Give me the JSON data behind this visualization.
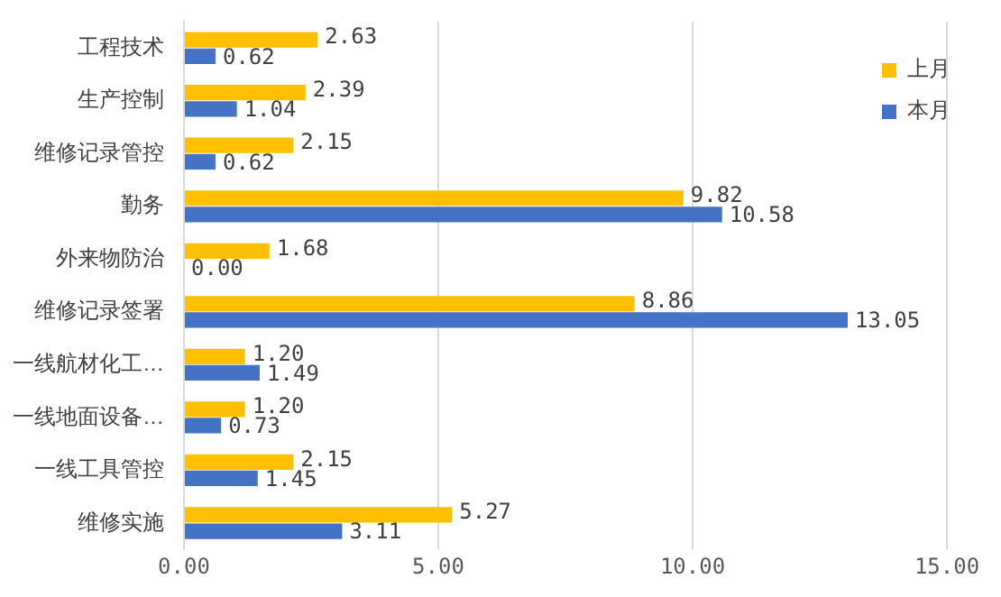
{
  "chart_data": {
    "type": "bar",
    "orientation": "horizontal",
    "categories": [
      "工程技术",
      "生产控制",
      "维修记录管控",
      "勤务",
      "外来物防治",
      "维修记录签署",
      "一线航材化工…",
      "一线地面设备…",
      "一线工具管控",
      "维修实施"
    ],
    "series": [
      {
        "name": "上月",
        "color": "#ffc000",
        "values": [
          2.63,
          2.39,
          2.15,
          9.82,
          1.68,
          8.86,
          1.2,
          1.2,
          2.15,
          5.27
        ],
        "value_labels": [
          "2.63",
          "2.39",
          "2.15",
          "9.82",
          "1.68",
          "8.86",
          "1.20",
          "1.20",
          "2.15",
          "5.27"
        ]
      },
      {
        "name": "本月",
        "color": "#4472c4",
        "values": [
          0.62,
          1.04,
          0.62,
          10.58,
          0,
          13.05,
          1.49,
          0.73,
          1.45,
          3.11
        ],
        "value_labels": [
          "0.62",
          "1.04",
          "0.62",
          "10.58",
          "0.00",
          "13.05",
          "1.49",
          "0.73",
          "1.45",
          "3.11"
        ]
      }
    ],
    "xlim": [
      0,
      15
    ],
    "xticks": [
      {
        "value": 0,
        "label": "0.00"
      },
      {
        "value": 5,
        "label": "5.00"
      },
      {
        "value": 10,
        "label": "10.00"
      },
      {
        "value": 15,
        "label": "15.00"
      }
    ],
    "grid": "x",
    "legend": "top right"
  }
}
